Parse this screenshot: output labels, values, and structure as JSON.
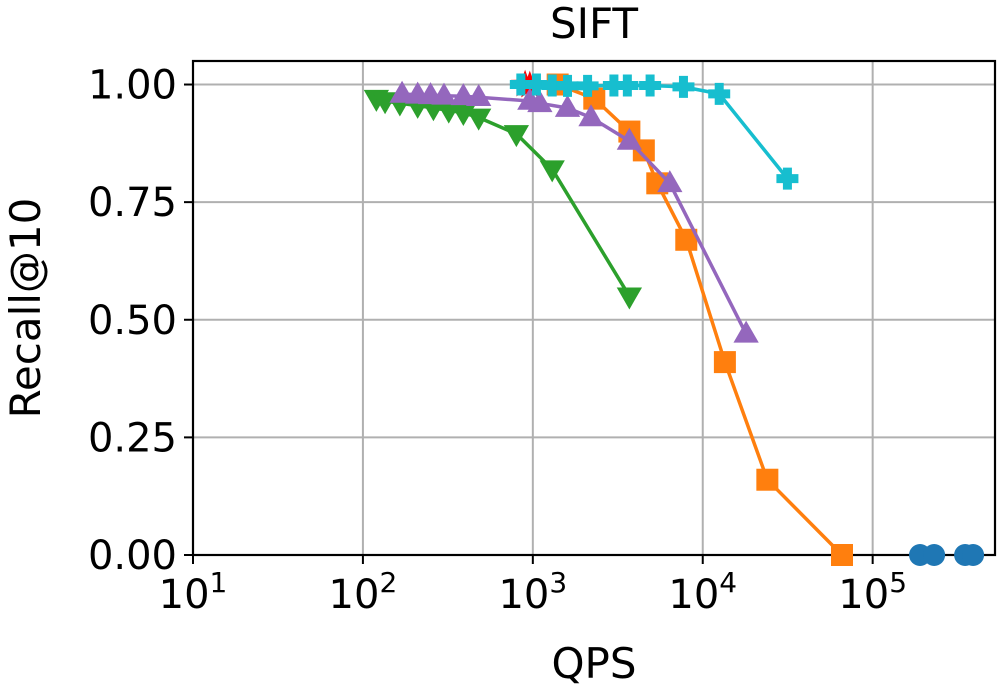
{
  "chart_data": {
    "type": "line",
    "title": "SIFT",
    "xlabel": "QPS",
    "ylabel": "Recall@10",
    "xscale": "log",
    "xlim_log10": [
      1,
      5.72
    ],
    "ylim": [
      0,
      1.05
    ],
    "grid": true,
    "x_ticks": [
      {
        "base": "10",
        "exp": "1",
        "log10": 1
      },
      {
        "base": "10",
        "exp": "2",
        "log10": 2
      },
      {
        "base": "10",
        "exp": "3",
        "log10": 3
      },
      {
        "base": "10",
        "exp": "4",
        "log10": 4
      },
      {
        "base": "10",
        "exp": "5",
        "log10": 5
      }
    ],
    "y_ticks": [
      {
        "label": "0.00",
        "value": 0.0
      },
      {
        "label": "0.25",
        "value": 0.25
      },
      {
        "label": "0.50",
        "value": 0.5
      },
      {
        "label": "0.75",
        "value": 0.75
      },
      {
        "label": "1.00",
        "value": 1.0
      }
    ],
    "series": [
      {
        "name": "series-blue",
        "color": "#1f77b4",
        "marker": "circle",
        "line": false,
        "points": [
          [
            190000,
            0.0
          ],
          [
            230000,
            0.0
          ],
          [
            350000,
            0.0
          ],
          [
            390000,
            0.0
          ]
        ]
      },
      {
        "name": "series-orange",
        "color": "#ff7f0e",
        "marker": "square",
        "line": true,
        "points": [
          [
            1400,
            1.0
          ],
          [
            2300,
            0.97
          ],
          [
            3700,
            0.9
          ],
          [
            4500,
            0.86
          ],
          [
            5400,
            0.79
          ],
          [
            8000,
            0.67
          ],
          [
            13500,
            0.41
          ],
          [
            24000,
            0.16
          ],
          [
            66000,
            0.0
          ]
        ]
      },
      {
        "name": "series-green",
        "color": "#2ca02c",
        "marker": "triangle-down",
        "line": true,
        "points": [
          [
            120,
            0.97
          ],
          [
            135,
            0.965
          ],
          [
            165,
            0.96
          ],
          [
            210,
            0.955
          ],
          [
            260,
            0.95
          ],
          [
            320,
            0.945
          ],
          [
            390,
            0.94
          ],
          [
            480,
            0.93
          ],
          [
            800,
            0.895
          ],
          [
            1300,
            0.82
          ],
          [
            3700,
            0.55
          ]
        ]
      },
      {
        "name": "series-red",
        "color": "#ff0000",
        "marker": "star",
        "line": false,
        "points": [
          [
            900,
            1.0
          ],
          [
            960,
            0.998
          ]
        ]
      },
      {
        "name": "series-purple",
        "color": "#9467bd",
        "marker": "triangle-up",
        "line": true,
        "points": [
          [
            170,
            0.98
          ],
          [
            210,
            0.978
          ],
          [
            250,
            0.977
          ],
          [
            300,
            0.976
          ],
          [
            390,
            0.975
          ],
          [
            480,
            0.973
          ],
          [
            960,
            0.965
          ],
          [
            1100,
            0.96
          ],
          [
            1600,
            0.95
          ],
          [
            2200,
            0.93
          ],
          [
            3700,
            0.88
          ],
          [
            6400,
            0.79
          ],
          [
            18000,
            0.47
          ]
        ]
      },
      {
        "name": "series-cyan",
        "color": "#17becf",
        "marker": "plus",
        "line": true,
        "points": [
          [
            850,
            1.0
          ],
          [
            1050,
            1.0
          ],
          [
            1300,
            0.998
          ],
          [
            1600,
            0.997
          ],
          [
            2100,
            0.997
          ],
          [
            3000,
            0.998
          ],
          [
            3600,
            0.998
          ],
          [
            4900,
            0.998
          ],
          [
            7700,
            0.995
          ],
          [
            12500,
            0.98
          ],
          [
            31500,
            0.8
          ]
        ]
      }
    ]
  }
}
